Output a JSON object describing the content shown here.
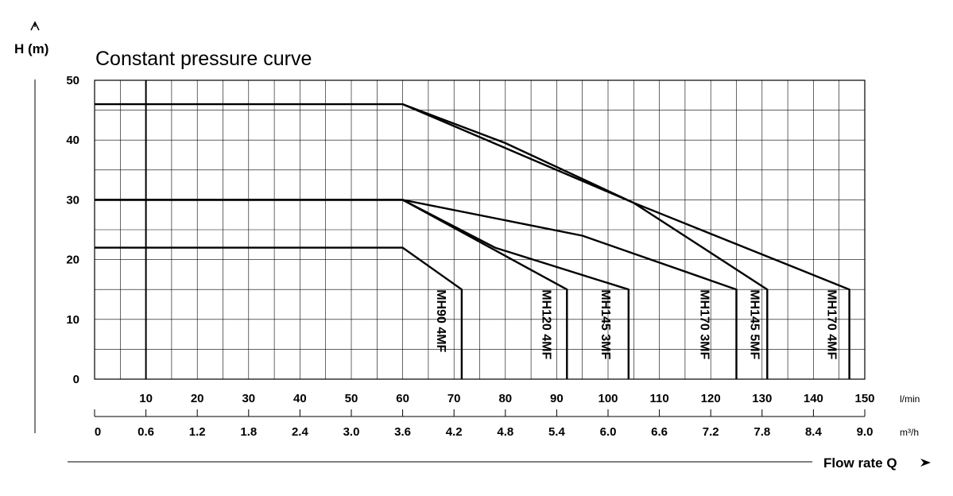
{
  "chart_data": {
    "type": "line",
    "title": "Constant pressure curve",
    "ylabel": "H (m)",
    "xlabel": "Flow rate Q",
    "x_unit_primary": "l/min",
    "x_unit_secondary": "m³/h",
    "ylim": [
      0,
      50
    ],
    "xlim": [
      0,
      150
    ],
    "y_ticks": [
      "0",
      "10",
      "20",
      "30",
      "40",
      "50"
    ],
    "x_ticks_primary": [
      "10",
      "20",
      "30",
      "40",
      "50",
      "60",
      "70",
      "80",
      "90",
      "100",
      "110",
      "120",
      "130",
      "140",
      "150"
    ],
    "x_ticks_secondary": [
      "0",
      "0.6",
      "1.2",
      "1.8",
      "2.4",
      "3.0",
      "3.6",
      "4.2",
      "4.8",
      "5.4",
      "6.0",
      "6.6",
      "7.2",
      "7.8",
      "8.4",
      "9.0"
    ],
    "grid": true,
    "series": [
      {
        "name": "MH90 4MF",
        "x": [
          0,
          60,
          71.5,
          71.5
        ],
        "y": [
          22,
          22,
          15,
          0
        ]
      },
      {
        "name": "MH120 4MF",
        "x": [
          0,
          60,
          92,
          92
        ],
        "y": [
          30,
          30,
          15,
          0
        ]
      },
      {
        "name": "MH145 3MF",
        "x": [
          0,
          60,
          78,
          104,
          104
        ],
        "y": [
          30,
          30,
          22,
          15,
          0
        ]
      },
      {
        "name": "MH170 3MF",
        "x": [
          0,
          60,
          95,
          125,
          125
        ],
        "y": [
          30,
          30,
          24,
          15,
          0
        ]
      },
      {
        "name": "MH145 5MF",
        "x": [
          0,
          60,
          80,
          105,
          131,
          131
        ],
        "y": [
          46,
          46,
          39.5,
          29.5,
          15,
          0
        ]
      },
      {
        "name": "MH170 4MF",
        "x": [
          60,
          105,
          147,
          147
        ],
        "y": [
          46,
          29.5,
          15,
          0
        ]
      }
    ]
  }
}
